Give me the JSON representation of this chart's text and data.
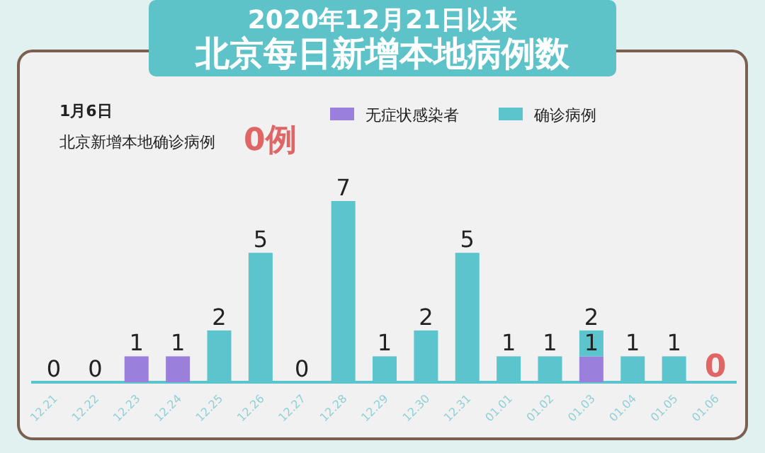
{
  "chart_data": {
    "type": "bar",
    "stacked": true,
    "title": "2020年12月21日以来",
    "subtitle": "北京每日新增本地病例数",
    "annotations": [
      "1月6日",
      "北京新增本地确诊病例",
      "0例"
    ],
    "categories": [
      "12.21",
      "12.22",
      "12.23",
      "12.24",
      "12.25",
      "12.26",
      "12.27",
      "12.28",
      "12.29",
      "12.30",
      "12.31",
      "01.01",
      "01.02",
      "01.03",
      "01.04",
      "01.05",
      "01.06"
    ],
    "series": [
      {
        "name": "无症状感染者",
        "color": "#9b7fdc",
        "values": [
          0,
          0,
          1,
          1,
          0,
          0,
          0,
          0,
          0,
          0,
          0,
          0,
          0,
          1,
          0,
          0,
          0
        ],
        "value_labels": [
          null,
          null,
          "1",
          "1",
          null,
          null,
          null,
          null,
          null,
          null,
          null,
          null,
          null,
          "1",
          null,
          null,
          null
        ]
      },
      {
        "name": "确诊病例",
        "color": "#5bc4cc",
        "values": [
          0,
          0,
          0,
          0,
          2,
          5,
          0,
          7,
          1,
          2,
          5,
          1,
          1,
          1,
          1,
          1,
          0
        ],
        "value_labels": [
          "0",
          "0",
          null,
          null,
          "2",
          "5",
          "0",
          "7",
          "1",
          "2",
          "5",
          "1",
          "1",
          null,
          "1",
          "1",
          "0"
        ]
      }
    ],
    "totals": [
      null,
      null,
      null,
      null,
      null,
      null,
      null,
      null,
      null,
      null,
      null,
      null,
      null,
      "2",
      null,
      null,
      null
    ],
    "legend": "top"
  }
}
